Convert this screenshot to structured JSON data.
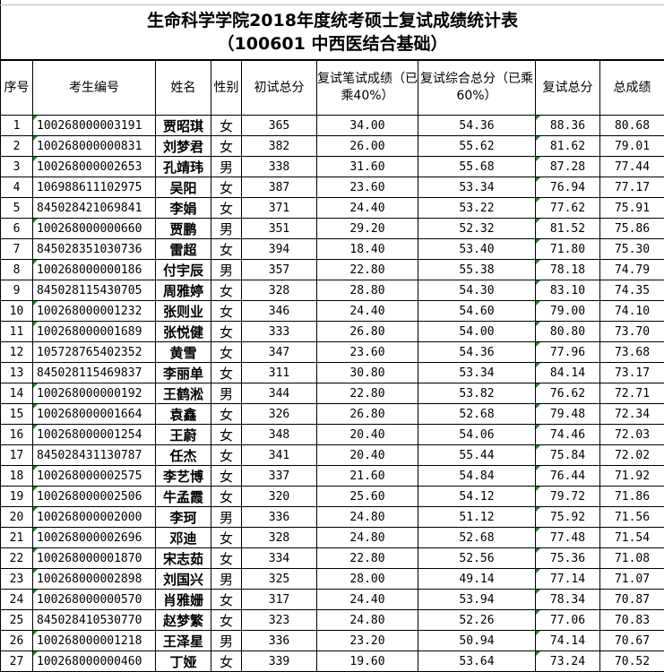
{
  "title": "生命科学学院2018年度统考硕士复试成绩统计表",
  "subtitle": "（100601  中西医结合基础）",
  "columns": [
    "序号",
    "考生编号",
    "姓名",
    "性别",
    "初试总分",
    "复试笔试成绩（已乘40%）",
    "复试综合总分（已乘60%）",
    "复试总分",
    "总成绩"
  ],
  "rows": [
    [
      "1",
      "100268000003191",
      "贾昭琪",
      "女",
      "365",
      "34.00",
      "54.36",
      "88.36",
      "80.68"
    ],
    [
      "2",
      "100268000000831",
      "刘梦君",
      "女",
      "382",
      "26.00",
      "55.62",
      "81.62",
      "79.01"
    ],
    [
      "3",
      "100268000002653",
      "孔靖玮",
      "男",
      "338",
      "31.60",
      "55.68",
      "87.28",
      "77.44"
    ],
    [
      "4",
      "106988611102975",
      "吴阳",
      "女",
      "387",
      "23.60",
      "53.34",
      "76.94",
      "77.17"
    ],
    [
      "5",
      "845028421069841",
      "李娟",
      "女",
      "371",
      "24.40",
      "53.22",
      "77.62",
      "75.91"
    ],
    [
      "6",
      "100268000000660",
      "贾鹏",
      "男",
      "351",
      "29.20",
      "52.32",
      "81.52",
      "75.86"
    ],
    [
      "7",
      "845028351030736",
      "雷超",
      "女",
      "394",
      "18.40",
      "53.40",
      "71.80",
      "75.30"
    ],
    [
      "8",
      "100268000000186",
      "付宇辰",
      "男",
      "357",
      "22.80",
      "55.38",
      "78.18",
      "74.79"
    ],
    [
      "9",
      "845028115430705",
      "周雅婷",
      "女",
      "328",
      "28.80",
      "54.30",
      "83.10",
      "74.35"
    ],
    [
      "10",
      "100268000001232",
      "张则业",
      "女",
      "346",
      "24.40",
      "54.60",
      "79.00",
      "74.10"
    ],
    [
      "11",
      "100268000001689",
      "张悦健",
      "女",
      "333",
      "26.80",
      "54.00",
      "80.80",
      "73.70"
    ],
    [
      "12",
      "105728765402352",
      "黄雪",
      "女",
      "347",
      "23.60",
      "54.36",
      "77.96",
      "73.68"
    ],
    [
      "13",
      "845028115469837",
      "李丽单",
      "女",
      "311",
      "30.80",
      "53.34",
      "84.14",
      "73.17"
    ],
    [
      "14",
      "100268000000192",
      "王鹤淞",
      "男",
      "344",
      "22.80",
      "53.82",
      "76.62",
      "72.71"
    ],
    [
      "15",
      "100268000001664",
      "袁鑫",
      "女",
      "326",
      "26.80",
      "52.68",
      "79.48",
      "72.34"
    ],
    [
      "16",
      "100268000001254",
      "王蔚",
      "女",
      "348",
      "20.40",
      "54.06",
      "74.46",
      "72.03"
    ],
    [
      "17",
      "845028431130787",
      "任杰",
      "女",
      "341",
      "20.40",
      "55.44",
      "75.84",
      "72.02"
    ],
    [
      "18",
      "100268000002575",
      "李艺博",
      "女",
      "337",
      "21.60",
      "54.84",
      "76.44",
      "71.92"
    ],
    [
      "19",
      "100268000002506",
      "牛孟霞",
      "女",
      "320",
      "25.60",
      "54.12",
      "79.72",
      "71.86"
    ],
    [
      "20",
      "100268000002000",
      "李珂",
      "男",
      "336",
      "24.80",
      "51.12",
      "75.92",
      "71.56"
    ],
    [
      "21",
      "100268000002696",
      "邓迪",
      "女",
      "328",
      "24.80",
      "52.68",
      "77.48",
      "71.54"
    ],
    [
      "22",
      "100268000001870",
      "宋志茹",
      "女",
      "334",
      "22.80",
      "52.56",
      "75.36",
      "71.08"
    ],
    [
      "23",
      "100268000002898",
      "刘国兴",
      "男",
      "325",
      "28.00",
      "49.14",
      "77.14",
      "71.07"
    ],
    [
      "24",
      "100268000000570",
      "肖雅姗",
      "女",
      "317",
      "24.40",
      "53.94",
      "78.34",
      "70.87"
    ],
    [
      "25",
      "845028410530770",
      "赵梦繁",
      "女",
      "323",
      "24.80",
      "52.26",
      "77.06",
      "70.83"
    ],
    [
      "26",
      "100268000001218",
      "王泽星",
      "男",
      "336",
      "23.20",
      "50.94",
      "74.14",
      "70.67"
    ],
    [
      "27",
      "100268000000460",
      "丁娅",
      "女",
      "339",
      "19.60",
      "53.64",
      "73.24",
      "70.52"
    ]
  ],
  "colors": {
    "text_marker": "#1a8a1a",
    "border": "#000000"
  }
}
